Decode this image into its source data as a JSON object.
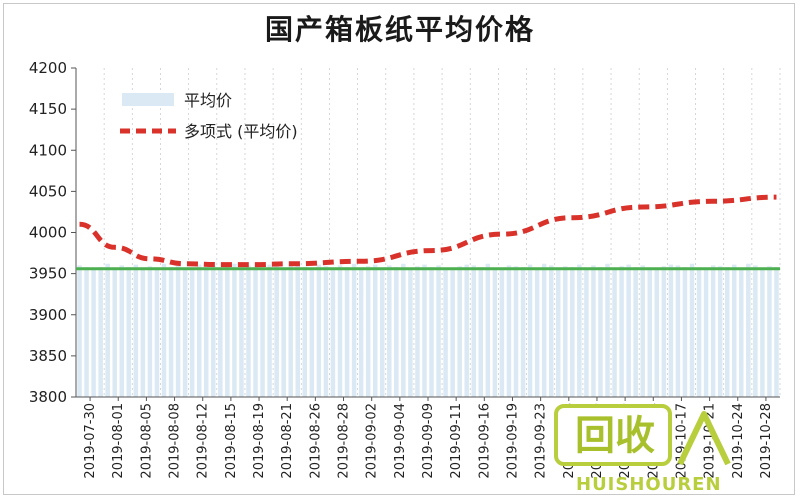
{
  "chart_data": {
    "type": "bar",
    "title": "国产箱板纸平均价格",
    "ylim": [
      3800,
      4200
    ],
    "yticks": [
      3800,
      3850,
      3900,
      3950,
      4000,
      4050,
      4100,
      4150,
      4200
    ],
    "x_tick_labels": [
      "2019-07-30",
      "2019-08-01",
      "2019-08-05",
      "2019-08-08",
      "2019-08-12",
      "2019-08-15",
      "2019-08-19",
      "2019-08-21",
      "2019-08-26",
      "2019-08-28",
      "2019-09-02",
      "2019-09-04",
      "2019-09-09",
      "2019-09-11",
      "2019-09-16",
      "2019-09-19",
      "2019-09-23",
      "2019-09-26",
      "2019-09-30",
      "2019-10-09",
      "2019-10-14",
      "2019-10-17",
      "2019-10-21",
      "2019-10-24",
      "2019-10-28"
    ],
    "legend_position": "top-left",
    "grid": {
      "vertical": true,
      "horizontal": false
    },
    "series": [
      {
        "name": "平均价",
        "kind": "bar",
        "color": "#dbe9f4",
        "values": [
          3960,
          3958,
          3955,
          3958,
          3962,
          3956,
          3960,
          3958,
          3961,
          3957,
          3959,
          3955,
          3962,
          3958,
          3960,
          3957,
          3956,
          3961,
          3958,
          3960,
          3955,
          3959,
          3962,
          3957,
          3960,
          3958,
          3956,
          3961,
          3959,
          3957,
          3960,
          3962,
          3958,
          3955,
          3961,
          3959,
          3957,
          3960,
          3958,
          3962,
          3956,
          3959,
          3961,
          3957,
          3960,
          3958,
          3962,
          3955,
          3959,
          3961,
          3958,
          3960,
          3957,
          3956,
          3959,
          3961,
          3960,
          3958,
          3962,
          3957,
          3955,
          3960,
          3959,
          3958,
          3961,
          3957,
          3962,
          3960,
          3956,
          3959,
          3958,
          3961,
          3957,
          3960,
          3958,
          3962,
          3955,
          3959,
          3961,
          3958,
          3960,
          3957,
          3956,
          3959,
          3961,
          3960,
          3958,
          3962,
          3957,
          3955,
          3960,
          3959,
          3958,
          3961,
          3957,
          3962,
          3960,
          3956,
          3959,
          3958
        ]
      },
      {
        "name": "多项式 (平均价)",
        "kind": "trendline",
        "color": "#d9322b",
        "x_index": [
          0,
          5,
          10,
          15,
          20,
          25,
          30,
          40,
          50,
          60,
          70,
          80,
          90,
          99
        ],
        "values": [
          4010,
          3982,
          3968,
          3962,
          3961,
          3961,
          3962,
          3965,
          3978,
          3998,
          4018,
          4031,
          4038,
          4043
        ]
      },
      {
        "name": "",
        "kind": "reference_line",
        "color": "#4caf50",
        "value": 3956
      }
    ]
  },
  "watermark": {
    "main_text": "回收",
    "sub_text": "HUISHOUREN"
  }
}
